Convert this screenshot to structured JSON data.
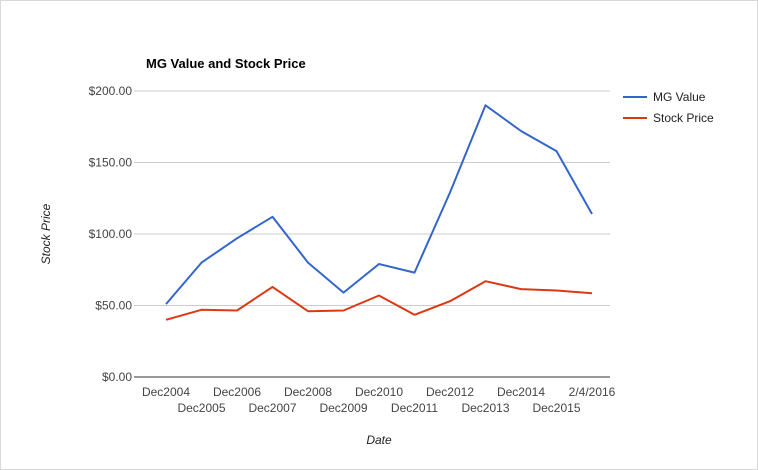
{
  "chart_data": {
    "type": "line",
    "title": "MG Value and Stock Price",
    "xlabel": "Date",
    "ylabel": "Stock Price",
    "categories": [
      "Dec2004",
      "Dec2005",
      "Dec2006",
      "Dec2007",
      "Dec2008",
      "Dec2009",
      "Dec2010",
      "Dec2011",
      "Dec2012",
      "Dec2013",
      "Dec2014",
      "Dec2015",
      "2/4/2016"
    ],
    "ylim": [
      0,
      200
    ],
    "yticks": [
      "$0.00",
      "$50.00",
      "$100.00",
      "$150.00",
      "$200.00"
    ],
    "ytick_values": [
      0,
      50,
      100,
      150,
      200
    ],
    "grid": true,
    "legend_position": "right",
    "series": [
      {
        "name": "MG Value",
        "color": "#3366cc",
        "values": [
          51,
          80,
          97,
          112,
          80,
          59,
          79,
          73,
          129,
          190,
          172,
          158,
          114
        ]
      },
      {
        "name": "Stock Price",
        "color": "#dc3912",
        "values": [
          40,
          47,
          46.5,
          63,
          46,
          46.5,
          57,
          43.5,
          53,
          67,
          61.5,
          60.5,
          58.5
        ]
      }
    ]
  }
}
